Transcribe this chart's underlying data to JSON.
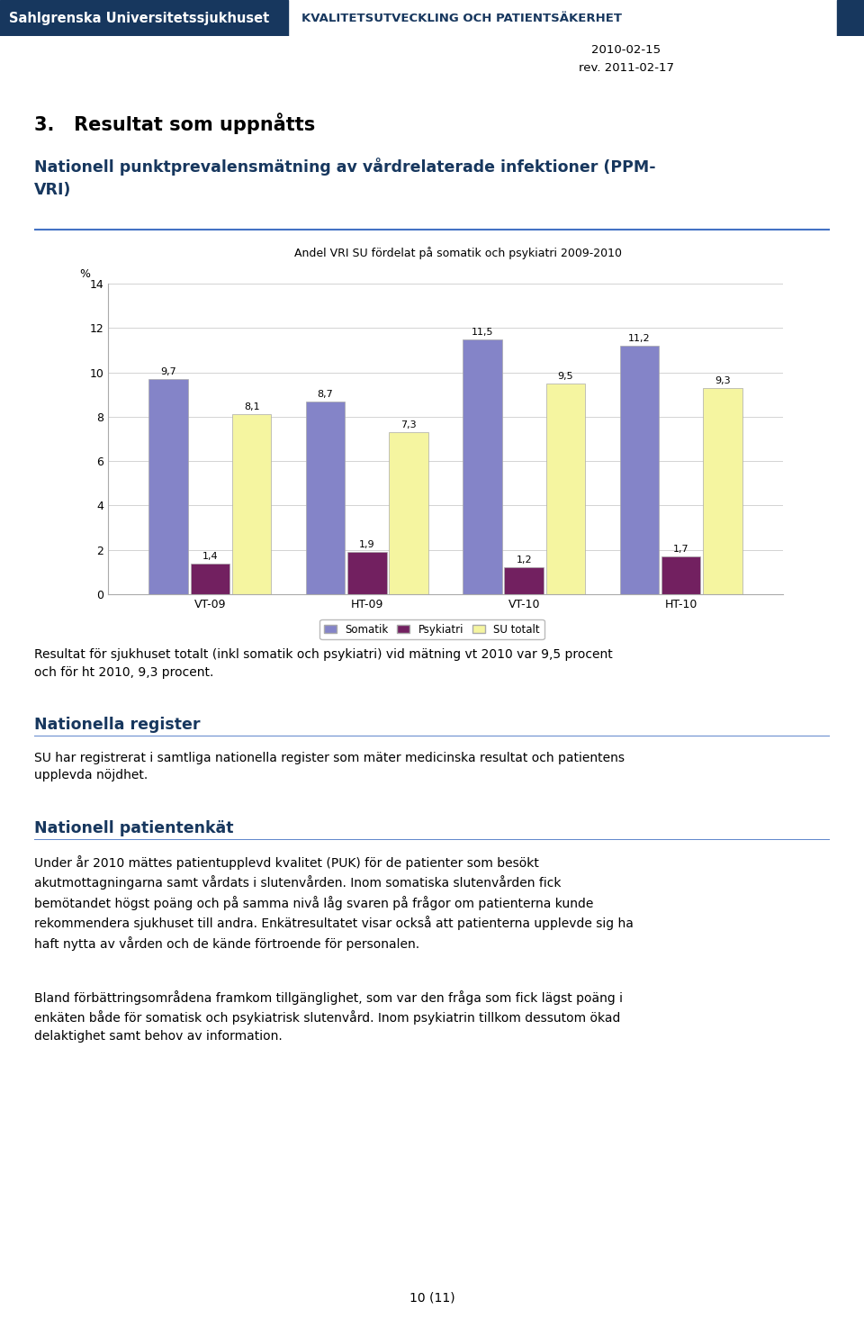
{
  "header_left": "Sahlgrenska Universitetssjukhuset",
  "header_right": "KVALITETSUTVECKLING OCH PATIENTSÄKERHET",
  "date1": "2010-02-15",
  "date2": "rev. 2011-02-17",
  "section_number": "3.",
  "section_title": "Resultat som uppnåtts",
  "chart_title": "Andel VRI SU fördelat på somatik och psykiatri 2009-2010",
  "ylabel": "%",
  "groups": [
    "VT-09",
    "HT-09",
    "VT-10",
    "HT-10"
  ],
  "somatik": [
    9.7,
    8.7,
    11.5,
    11.2
  ],
  "psykiatri": [
    1.4,
    1.9,
    1.2,
    1.7
  ],
  "su_totalt": [
    8.1,
    7.3,
    9.5,
    9.3
  ],
  "somatik_color": "#8484c8",
  "psykiatri_color": "#722060",
  "su_totalt_color": "#f5f5a0",
  "ylim": [
    0,
    14
  ],
  "yticks": [
    0,
    2,
    4,
    6,
    8,
    10,
    12,
    14
  ],
  "blue_heading_color": "#17375e",
  "subtitle_ppm": "Nationell punktprevalensmätning av vårdrelaterade infektioner (PPM-\nVRI)",
  "section_heading": "3.   Resultat som uppnåtts",
  "text_result": "Resultat för sjukhuset totalt (inkl somatik och psykiatri) vid mätning vt 2010 var 9,5 procent\noch för ht 2010, 9,3 procent.",
  "heading2": "Nationella register",
  "body2": "SU har registrerat i samtliga nationella register som mäter medicinska resultat och patientens\nupplevda nöjdhet.",
  "heading3": "Nationell patientenkät",
  "body3": "Under år 2010 mättes patientupplevd kvalitet (PUK) för de patienter som besökt\nakutmottagningarna samt vårdats i slutenvården. Inom somatiska slutenvården fick\nbemötandet högst poäng och på samma nivå låg svaren på frågor om patienterna kunde\nrekommendera sjukhuset till andra. Enkätresultatet visar också att patienterna upplevde sig ha\nhaft nytta av vården och de kände förtroende för personalen.",
  "body4": "Bland förbättringsområdena framkom tillgänglighet, som var den fråga som fick lägst poäng i\nenkäten både för somatisk och psykiatrisk slutenvård. Inom psykiatrin tillkom dessutom ökad\ndelaktighet samt behov av information.",
  "footer": "10 (11)",
  "header_bg": "#17375e",
  "header_text_color": "#ffffff",
  "header_right_color": "#17375e"
}
